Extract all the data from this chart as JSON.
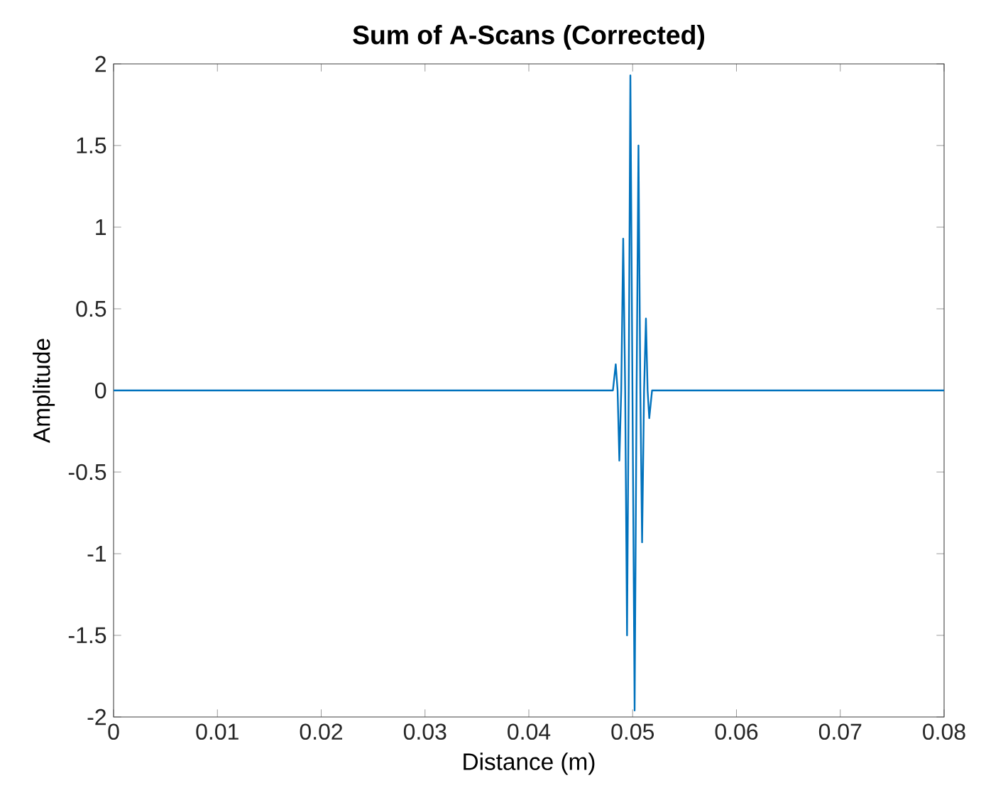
{
  "chart_data": {
    "type": "line",
    "title": "Sum of A-Scans (Corrected)",
    "xlabel": "Distance (m)",
    "ylabel": "Amplitude",
    "xlim": [
      0,
      0.08
    ],
    "ylim": [
      -2,
      2
    ],
    "xticks": [
      0,
      0.01,
      0.02,
      0.03,
      0.04,
      0.05,
      0.06,
      0.07,
      0.08
    ],
    "yticks": [
      -2,
      -1.5,
      -1,
      -0.5,
      0,
      0.5,
      1,
      1.5,
      2
    ],
    "series": [
      {
        "color": "#0072bd",
        "line_style": "solid",
        "x": [
          0,
          0.0481,
          0.04837,
          0.04855,
          0.04872,
          0.0489,
          0.04909,
          0.04928,
          0.04946,
          0.04962,
          0.04978,
          0.04998,
          0.05019,
          0.05038,
          0.05056,
          0.05074,
          0.05091,
          0.0511,
          0.05128,
          0.05144,
          0.0516,
          0.05187,
          0.08
        ],
        "values": [
          0,
          0,
          0.16,
          0,
          -0.43,
          0,
          0.93,
          0,
          -1.5,
          0,
          1.93,
          0,
          -1.96,
          0,
          1.5,
          0,
          -0.93,
          0,
          0.44,
          0,
          -0.17,
          0,
          0
        ]
      }
    ]
  }
}
